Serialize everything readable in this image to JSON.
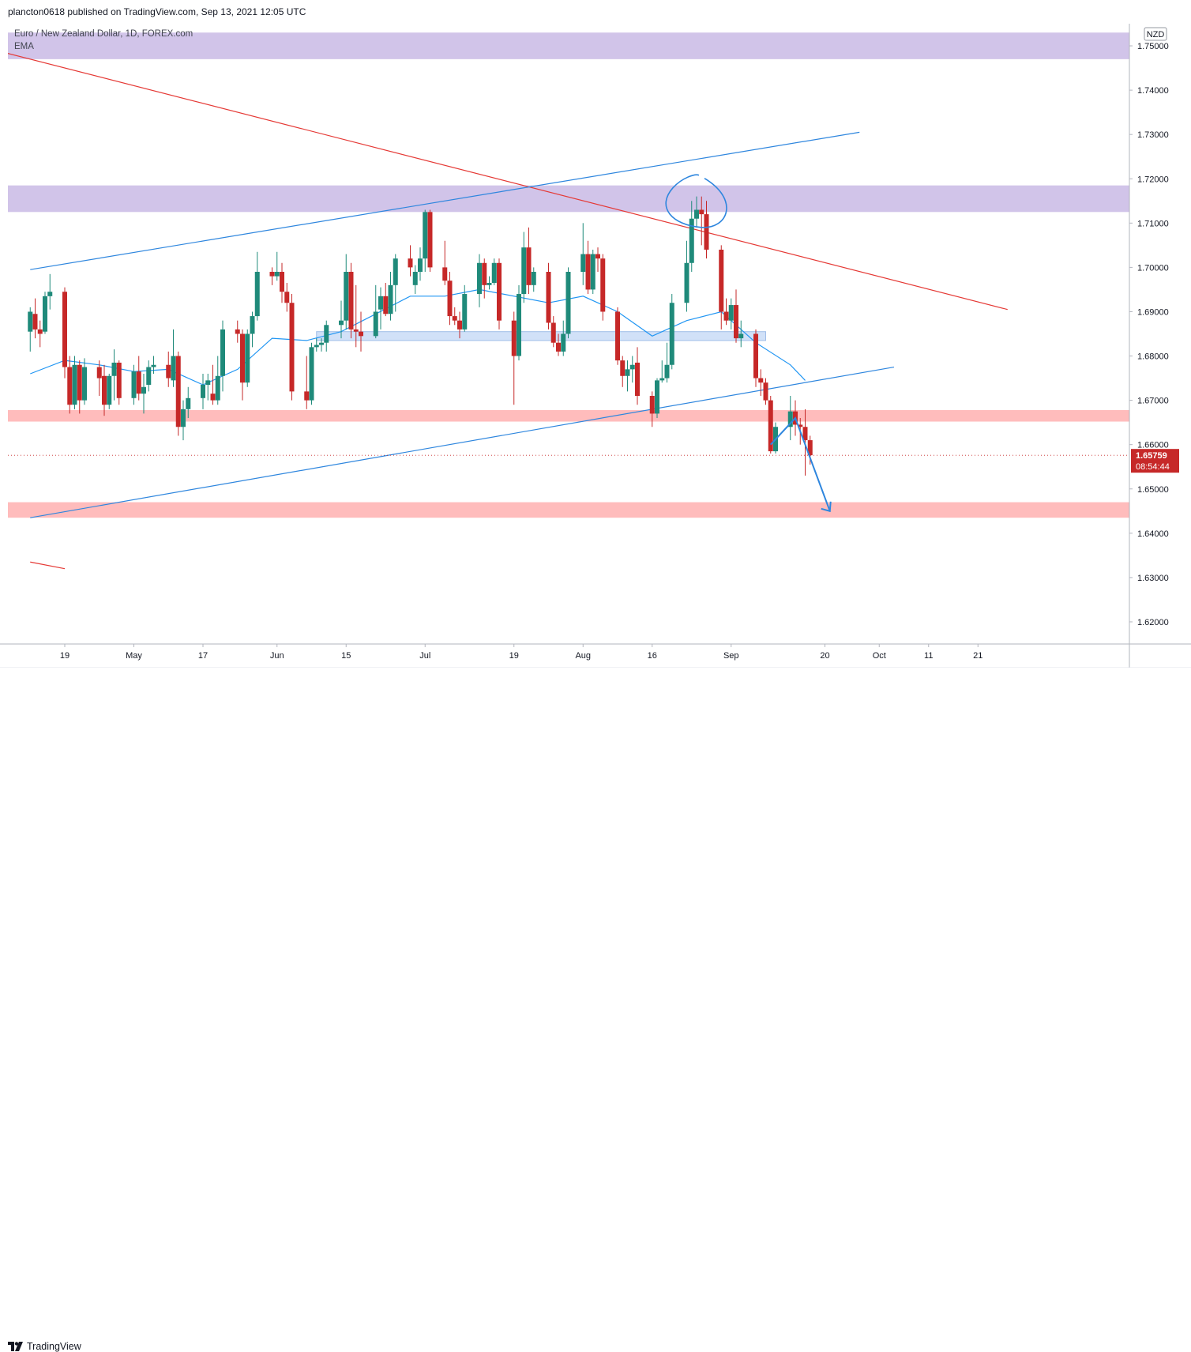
{
  "header": {
    "publish_info": "plancton0618 published on TradingView.com, Sep 13, 2021 12:05 UTC"
  },
  "symbol": {
    "title": "Euro / New Zealand Dollar, 1D, FOREX.com",
    "indicator": "EMA"
  },
  "footer": {
    "logo_text": "TradingView"
  },
  "colors": {
    "up": "#26a69a",
    "up_body": "#1f8a7a",
    "down": "#c62828",
    "ema": "#2196f3",
    "resistance_zone": "#d1c4e9",
    "support_zone": "#ffbcbc",
    "mid_zone": "#c9dcf7",
    "trendline_red": "#e53935",
    "trendline_blue": "#2e86de"
  },
  "chart_data": {
    "type": "candlestick",
    "title": "Euro / New Zealand Dollar, 1D, FOREX.com",
    "currency": "NZD",
    "ylim": [
      1.615,
      1.755
    ],
    "yticks": [
      "1.75000",
      "1.74000",
      "1.73000",
      "1.72000",
      "1.71000",
      "1.70000",
      "1.69000",
      "1.68000",
      "1.67000",
      "1.66000",
      "1.65000",
      "1.64000",
      "1.63000",
      "1.62000"
    ],
    "xticks": [
      {
        "label": "19",
        "date": "2021-04-19"
      },
      {
        "label": "May",
        "date": "2021-05-03"
      },
      {
        "label": "17",
        "date": "2021-05-17"
      },
      {
        "label": "Jun",
        "date": "2021-06-01"
      },
      {
        "label": "15",
        "date": "2021-06-15"
      },
      {
        "label": "Jul",
        "date": "2021-07-01"
      },
      {
        "label": "19",
        "date": "2021-07-19"
      },
      {
        "label": "Aug",
        "date": "2021-08-02"
      },
      {
        "label": "16",
        "date": "2021-08-16"
      },
      {
        "label": "Sep",
        "date": "2021-09-01"
      },
      {
        "label": "20",
        "date": "2021-09-20"
      },
      {
        "label": "Oct",
        "date": "2021-10-01"
      },
      {
        "label": "11",
        "date": "2021-10-11"
      },
      {
        "label": "21",
        "date": "2021-10-21"
      }
    ],
    "last_price": {
      "price": "1.65759",
      "countdown": "08:54:44"
    },
    "candles": [
      {
        "d": "2021-04-12",
        "o": 1.6855,
        "h": 1.691,
        "l": 1.681,
        "c": 1.69
      },
      {
        "d": "2021-04-13",
        "o": 1.6895,
        "h": 1.693,
        "l": 1.684,
        "c": 1.686
      },
      {
        "d": "2021-04-14",
        "o": 1.686,
        "h": 1.688,
        "l": 1.682,
        "c": 1.685
      },
      {
        "d": "2021-04-15",
        "o": 1.6855,
        "h": 1.6945,
        "l": 1.685,
        "c": 1.6935
      },
      {
        "d": "2021-04-16",
        "o": 1.6935,
        "h": 1.6985,
        "l": 1.6905,
        "c": 1.6945
      },
      {
        "d": "2021-04-19",
        "o": 1.6945,
        "h": 1.6955,
        "l": 1.675,
        "c": 1.6775
      },
      {
        "d": "2021-04-20",
        "o": 1.6775,
        "h": 1.68,
        "l": 1.667,
        "c": 1.669
      },
      {
        "d": "2021-04-21",
        "o": 1.669,
        "h": 1.68,
        "l": 1.668,
        "c": 1.678
      },
      {
        "d": "2021-04-22",
        "o": 1.678,
        "h": 1.679,
        "l": 1.667,
        "c": 1.67
      },
      {
        "d": "2021-04-23",
        "o": 1.67,
        "h": 1.6795,
        "l": 1.669,
        "c": 1.6775
      },
      {
        "d": "2021-04-26",
        "o": 1.6775,
        "h": 1.679,
        "l": 1.671,
        "c": 1.675
      },
      {
        "d": "2021-04-27",
        "o": 1.6755,
        "h": 1.678,
        "l": 1.6665,
        "c": 1.669
      },
      {
        "d": "2021-04-28",
        "o": 1.669,
        "h": 1.676,
        "l": 1.668,
        "c": 1.6755
      },
      {
        "d": "2021-04-29",
        "o": 1.6755,
        "h": 1.6815,
        "l": 1.67,
        "c": 1.6785
      },
      {
        "d": "2021-04-30",
        "o": 1.6785,
        "h": 1.679,
        "l": 1.669,
        "c": 1.6705
      },
      {
        "d": "2021-05-03",
        "o": 1.6705,
        "h": 1.678,
        "l": 1.669,
        "c": 1.6765
      },
      {
        "d": "2021-05-04",
        "o": 1.6765,
        "h": 1.68,
        "l": 1.67,
        "c": 1.6715
      },
      {
        "d": "2021-05-05",
        "o": 1.6715,
        "h": 1.676,
        "l": 1.667,
        "c": 1.673
      },
      {
        "d": "2021-05-06",
        "o": 1.6735,
        "h": 1.679,
        "l": 1.672,
        "c": 1.6775
      },
      {
        "d": "2021-05-07",
        "o": 1.6775,
        "h": 1.68,
        "l": 1.676,
        "c": 1.678
      },
      {
        "d": "2021-05-10",
        "o": 1.678,
        "h": 1.681,
        "l": 1.673,
        "c": 1.675
      },
      {
        "d": "2021-05-11",
        "o": 1.6745,
        "h": 1.686,
        "l": 1.673,
        "c": 1.68
      },
      {
        "d": "2021-05-12",
        "o": 1.68,
        "h": 1.681,
        "l": 1.662,
        "c": 1.664
      },
      {
        "d": "2021-05-13",
        "o": 1.664,
        "h": 1.67,
        "l": 1.661,
        "c": 1.668
      },
      {
        "d": "2021-05-14",
        "o": 1.668,
        "h": 1.673,
        "l": 1.666,
        "c": 1.6705
      },
      {
        "d": "2021-05-17",
        "o": 1.6705,
        "h": 1.676,
        "l": 1.668,
        "c": 1.6735
      },
      {
        "d": "2021-05-18",
        "o": 1.6735,
        "h": 1.676,
        "l": 1.67,
        "c": 1.6745
      },
      {
        "d": "2021-05-19",
        "o": 1.6715,
        "h": 1.678,
        "l": 1.669,
        "c": 1.67
      },
      {
        "d": "2021-05-20",
        "o": 1.67,
        "h": 1.68,
        "l": 1.669,
        "c": 1.6755
      },
      {
        "d": "2021-05-21",
        "o": 1.6755,
        "h": 1.688,
        "l": 1.672,
        "c": 1.686
      },
      {
        "d": "2021-05-24",
        "o": 1.686,
        "h": 1.688,
        "l": 1.683,
        "c": 1.685
      },
      {
        "d": "2021-05-25",
        "o": 1.685,
        "h": 1.686,
        "l": 1.67,
        "c": 1.674
      },
      {
        "d": "2021-05-26",
        "o": 1.674,
        "h": 1.686,
        "l": 1.673,
        "c": 1.685
      },
      {
        "d": "2021-05-27",
        "o": 1.685,
        "h": 1.69,
        "l": 1.682,
        "c": 1.689
      },
      {
        "d": "2021-05-28",
        "o": 1.689,
        "h": 1.7035,
        "l": 1.688,
        "c": 1.699
      },
      {
        "d": "2021-05-31",
        "o": 1.699,
        "h": 1.7,
        "l": 1.696,
        "c": 1.698
      },
      {
        "d": "2021-06-01",
        "o": 1.698,
        "h": 1.7035,
        "l": 1.697,
        "c": 1.699
      },
      {
        "d": "2021-06-02",
        "o": 1.699,
        "h": 1.701,
        "l": 1.692,
        "c": 1.6945
      },
      {
        "d": "2021-06-03",
        "o": 1.6945,
        "h": 1.6965,
        "l": 1.69,
        "c": 1.692
      },
      {
        "d": "2021-06-04",
        "o": 1.692,
        "h": 1.694,
        "l": 1.67,
        "c": 1.672
      },
      {
        "d": "2021-06-07",
        "o": 1.672,
        "h": 1.68,
        "l": 1.668,
        "c": 1.67
      },
      {
        "d": "2021-06-08",
        "o": 1.67,
        "h": 1.683,
        "l": 1.669,
        "c": 1.682
      },
      {
        "d": "2021-06-09",
        "o": 1.682,
        "h": 1.684,
        "l": 1.681,
        "c": 1.6825
      },
      {
        "d": "2021-06-10",
        "o": 1.6825,
        "h": 1.684,
        "l": 1.681,
        "c": 1.683
      },
      {
        "d": "2021-06-11",
        "o": 1.683,
        "h": 1.688,
        "l": 1.681,
        "c": 1.687
      },
      {
        "d": "2021-06-14",
        "o": 1.687,
        "h": 1.6925,
        "l": 1.684,
        "c": 1.688
      },
      {
        "d": "2021-06-15",
        "o": 1.688,
        "h": 1.703,
        "l": 1.686,
        "c": 1.699
      },
      {
        "d": "2021-06-16",
        "o": 1.699,
        "h": 1.701,
        "l": 1.684,
        "c": 1.686
      },
      {
        "d": "2021-06-17",
        "o": 1.686,
        "h": 1.696,
        "l": 1.682,
        "c": 1.6855
      },
      {
        "d": "2021-06-18",
        "o": 1.6855,
        "h": 1.69,
        "l": 1.681,
        "c": 1.6845
      },
      {
        "d": "2021-06-21",
        "o": 1.6845,
        "h": 1.696,
        "l": 1.684,
        "c": 1.69
      },
      {
        "d": "2021-06-22",
        "o": 1.6905,
        "h": 1.6955,
        "l": 1.686,
        "c": 1.6935
      },
      {
        "d": "2021-06-23",
        "o": 1.6935,
        "h": 1.6965,
        "l": 1.689,
        "c": 1.6895
      },
      {
        "d": "2021-06-24",
        "o": 1.6895,
        "h": 1.699,
        "l": 1.688,
        "c": 1.696
      },
      {
        "d": "2021-06-25",
        "o": 1.696,
        "h": 1.703,
        "l": 1.69,
        "c": 1.702
      },
      {
        "d": "2021-06-28",
        "o": 1.702,
        "h": 1.705,
        "l": 1.698,
        "c": 1.7
      },
      {
        "d": "2021-06-29",
        "o": 1.696,
        "h": 1.7005,
        "l": 1.694,
        "c": 1.699
      },
      {
        "d": "2021-06-30",
        "o": 1.699,
        "h": 1.7045,
        "l": 1.697,
        "c": 1.702
      },
      {
        "d": "2021-07-01",
        "o": 1.702,
        "h": 1.713,
        "l": 1.699,
        "c": 1.7125
      },
      {
        "d": "2021-07-02",
        "o": 1.7125,
        "h": 1.713,
        "l": 1.699,
        "c": 1.7
      },
      {
        "d": "2021-07-05",
        "o": 1.7,
        "h": 1.706,
        "l": 1.696,
        "c": 1.697
      },
      {
        "d": "2021-07-06",
        "o": 1.697,
        "h": 1.699,
        "l": 1.687,
        "c": 1.689
      },
      {
        "d": "2021-07-07",
        "o": 1.689,
        "h": 1.691,
        "l": 1.687,
        "c": 1.688
      },
      {
        "d": "2021-07-08",
        "o": 1.688,
        "h": 1.69,
        "l": 1.684,
        "c": 1.686
      },
      {
        "d": "2021-07-09",
        "o": 1.686,
        "h": 1.696,
        "l": 1.6855,
        "c": 1.694
      },
      {
        "d": "2021-07-12",
        "o": 1.694,
        "h": 1.703,
        "l": 1.691,
        "c": 1.701
      },
      {
        "d": "2021-07-13",
        "o": 1.701,
        "h": 1.702,
        "l": 1.693,
        "c": 1.696
      },
      {
        "d": "2021-07-14",
        "o": 1.696,
        "h": 1.698,
        "l": 1.695,
        "c": 1.6965
      },
      {
        "d": "2021-07-15",
        "o": 1.6965,
        "h": 1.702,
        "l": 1.696,
        "c": 1.701
      },
      {
        "d": "2021-07-16",
        "o": 1.701,
        "h": 1.702,
        "l": 1.686,
        "c": 1.688
      },
      {
        "d": "2021-07-19",
        "o": 1.688,
        "h": 1.69,
        "l": 1.669,
        "c": 1.68
      },
      {
        "d": "2021-07-20",
        "o": 1.68,
        "h": 1.696,
        "l": 1.679,
        "c": 1.694
      },
      {
        "d": "2021-07-21",
        "o": 1.694,
        "h": 1.708,
        "l": 1.692,
        "c": 1.7045
      },
      {
        "d": "2021-07-22",
        "o": 1.7045,
        "h": 1.709,
        "l": 1.694,
        "c": 1.696
      },
      {
        "d": "2021-07-23",
        "o": 1.696,
        "h": 1.7,
        "l": 1.6945,
        "c": 1.699
      },
      {
        "d": "2021-07-26",
        "o": 1.699,
        "h": 1.701,
        "l": 1.686,
        "c": 1.6875
      },
      {
        "d": "2021-07-27",
        "o": 1.6875,
        "h": 1.689,
        "l": 1.682,
        "c": 1.683
      },
      {
        "d": "2021-07-28",
        "o": 1.683,
        "h": 1.685,
        "l": 1.68,
        "c": 1.681
      },
      {
        "d": "2021-07-29",
        "o": 1.681,
        "h": 1.688,
        "l": 1.68,
        "c": 1.685
      },
      {
        "d": "2021-07-30",
        "o": 1.685,
        "h": 1.7,
        "l": 1.684,
        "c": 1.699
      },
      {
        "d": "2021-08-02",
        "o": 1.699,
        "h": 1.71,
        "l": 1.696,
        "c": 1.703
      },
      {
        "d": "2021-08-03",
        "o": 1.703,
        "h": 1.706,
        "l": 1.694,
        "c": 1.695
      },
      {
        "d": "2021-08-04",
        "o": 1.695,
        "h": 1.704,
        "l": 1.694,
        "c": 1.703
      },
      {
        "d": "2021-08-05",
        "o": 1.703,
        "h": 1.7045,
        "l": 1.699,
        "c": 1.702
      },
      {
        "d": "2021-08-06",
        "o": 1.702,
        "h": 1.703,
        "l": 1.688,
        "c": 1.69
      },
      {
        "d": "2021-08-09",
        "o": 1.69,
        "h": 1.691,
        "l": 1.678,
        "c": 1.679
      },
      {
        "d": "2021-08-10",
        "o": 1.679,
        "h": 1.68,
        "l": 1.673,
        "c": 1.6755
      },
      {
        "d": "2021-08-11",
        "o": 1.6755,
        "h": 1.679,
        "l": 1.672,
        "c": 1.677
      },
      {
        "d": "2021-08-12",
        "o": 1.677,
        "h": 1.68,
        "l": 1.674,
        "c": 1.678
      },
      {
        "d": "2021-08-13",
        "o": 1.6785,
        "h": 1.682,
        "l": 1.669,
        "c": 1.671
      },
      {
        "d": "2021-08-16",
        "o": 1.671,
        "h": 1.672,
        "l": 1.664,
        "c": 1.667
      },
      {
        "d": "2021-08-17",
        "o": 1.667,
        "h": 1.675,
        "l": 1.666,
        "c": 1.6745
      },
      {
        "d": "2021-08-18",
        "o": 1.6745,
        "h": 1.679,
        "l": 1.674,
        "c": 1.675
      },
      {
        "d": "2021-08-19",
        "o": 1.675,
        "h": 1.683,
        "l": 1.674,
        "c": 1.678
      },
      {
        "d": "2021-08-20",
        "o": 1.678,
        "h": 1.694,
        "l": 1.677,
        "c": 1.692
      },
      {
        "d": "2021-08-23",
        "o": 1.692,
        "h": 1.706,
        "l": 1.69,
        "c": 1.701
      },
      {
        "d": "2021-08-24",
        "o": 1.701,
        "h": 1.715,
        "l": 1.699,
        "c": 1.711
      },
      {
        "d": "2021-08-25",
        "o": 1.711,
        "h": 1.716,
        "l": 1.709,
        "c": 1.713
      },
      {
        "d": "2021-08-26",
        "o": 1.713,
        "h": 1.716,
        "l": 1.705,
        "c": 1.712
      },
      {
        "d": "2021-08-27",
        "o": 1.712,
        "h": 1.715,
        "l": 1.702,
        "c": 1.704
      },
      {
        "d": "2021-08-30",
        "o": 1.704,
        "h": 1.705,
        "l": 1.686,
        "c": 1.69
      },
      {
        "d": "2021-08-31",
        "o": 1.69,
        "h": 1.693,
        "l": 1.687,
        "c": 1.688
      },
      {
        "d": "2021-09-01",
        "o": 1.688,
        "h": 1.693,
        "l": 1.686,
        "c": 1.6915
      },
      {
        "d": "2021-09-02",
        "o": 1.6915,
        "h": 1.695,
        "l": 1.683,
        "c": 1.684
      },
      {
        "d": "2021-09-03",
        "o": 1.684,
        "h": 1.688,
        "l": 1.682,
        "c": 1.685
      },
      {
        "d": "2021-09-06",
        "o": 1.685,
        "h": 1.686,
        "l": 1.673,
        "c": 1.675
      },
      {
        "d": "2021-09-07",
        "o": 1.675,
        "h": 1.677,
        "l": 1.671,
        "c": 1.674
      },
      {
        "d": "2021-09-08",
        "o": 1.674,
        "h": 1.675,
        "l": 1.669,
        "c": 1.67
      },
      {
        "d": "2021-09-09",
        "o": 1.67,
        "h": 1.671,
        "l": 1.658,
        "c": 1.6585
      },
      {
        "d": "2021-09-10",
        "o": 1.6585,
        "h": 1.665,
        "l": 1.658,
        "c": 1.664
      },
      {
        "d": "2021-09-13",
        "o": 1.664,
        "h": 1.671,
        "l": 1.661,
        "c": 1.6675
      },
      {
        "d": "2021-09-14",
        "o": 1.6675,
        "h": 1.67,
        "l": 1.662,
        "c": 1.6645
      },
      {
        "d": "2021-09-15",
        "o": 1.6645,
        "h": 1.666,
        "l": 1.66,
        "c": 1.664
      },
      {
        "d": "2021-09-16",
        "o": 1.664,
        "h": 1.668,
        "l": 1.653,
        "c": 1.661
      },
      {
        "d": "2021-09-17",
        "o": 1.661,
        "h": 1.662,
        "l": 1.6555,
        "c": 1.6576
      }
    ],
    "ema": [
      {
        "d": "2021-04-12",
        "v": 1.676
      },
      {
        "d": "2021-04-19",
        "v": 1.679
      },
      {
        "d": "2021-04-26",
        "v": 1.678
      },
      {
        "d": "2021-05-03",
        "v": 1.6765
      },
      {
        "d": "2021-05-10",
        "v": 1.677
      },
      {
        "d": "2021-05-17",
        "v": 1.6735
      },
      {
        "d": "2021-05-24",
        "v": 1.677
      },
      {
        "d": "2021-05-31",
        "v": 1.684
      },
      {
        "d": "2021-06-07",
        "v": 1.6835
      },
      {
        "d": "2021-06-14",
        "v": 1.6855
      },
      {
        "d": "2021-06-21",
        "v": 1.6895
      },
      {
        "d": "2021-06-28",
        "v": 1.6935
      },
      {
        "d": "2021-07-05",
        "v": 1.6935
      },
      {
        "d": "2021-07-12",
        "v": 1.695
      },
      {
        "d": "2021-07-19",
        "v": 1.6935
      },
      {
        "d": "2021-07-26",
        "v": 1.692
      },
      {
        "d": "2021-08-02",
        "v": 1.6935
      },
      {
        "d": "2021-08-09",
        "v": 1.69
      },
      {
        "d": "2021-08-16",
        "v": 1.6845
      },
      {
        "d": "2021-08-23",
        "v": 1.688
      },
      {
        "d": "2021-08-30",
        "v": 1.69
      },
      {
        "d": "2021-09-06",
        "v": 1.683
      },
      {
        "d": "2021-09-13",
        "v": 1.678
      },
      {
        "d": "2021-09-16",
        "v": 1.6745
      }
    ],
    "zones": [
      {
        "kind": "resistance",
        "y1": 1.747,
        "y2": 1.753
      },
      {
        "kind": "resistance",
        "y1": 1.7125,
        "y2": 1.7185
      },
      {
        "kind": "mid",
        "y1": 1.6835,
        "y2": 1.6855,
        "d1": "2021-06-09",
        "d2": "2021-09-08"
      },
      {
        "kind": "support",
        "y1": 1.6652,
        "y2": 1.6678
      },
      {
        "kind": "support",
        "y1": 1.6435,
        "y2": 1.647
      }
    ],
    "trendlines": [
      {
        "kind": "red",
        "d1": "2021-03-15",
        "y1": 1.755,
        "d2": "2021-10-27",
        "y2": 1.6905
      },
      {
        "kind": "red",
        "d1": "2021-04-12",
        "y1": 1.6335,
        "d2": "2021-04-19",
        "y2": 1.632
      },
      {
        "kind": "blue",
        "d1": "2021-04-12",
        "y1": 1.6995,
        "d2": "2021-09-27",
        "y2": 1.7305
      },
      {
        "kind": "blue",
        "d1": "2021-04-12",
        "y1": 1.6435,
        "d2": "2021-10-04",
        "y2": 1.6775
      }
    ],
    "arrow": [
      {
        "d": "2021-09-09",
        "p": 1.66
      },
      {
        "d": "2021-09-14",
        "p": 1.666
      },
      {
        "d": "2021-09-21",
        "p": 1.645
      }
    ]
  }
}
